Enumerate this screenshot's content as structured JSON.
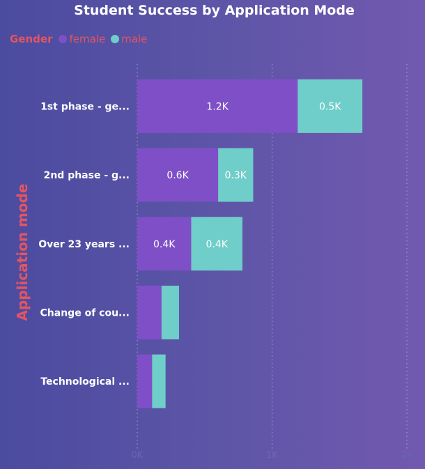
{
  "chart_data": {
    "type": "bar",
    "orientation": "horizontal",
    "stacked": true,
    "title": "Student Success by Application Mode",
    "ylabel": "Application mode",
    "xlabel": "",
    "legend_title": "Gender",
    "legend_position": "top-left",
    "grid": "vertical dotted",
    "xlim": [
      0,
      2000
    ],
    "x_ticks": [
      "0K",
      "1K",
      "2K"
    ],
    "x_tick_values": [
      0,
      1000,
      2000
    ],
    "categories": [
      "1st phase - ge...",
      "2nd phase - g...",
      "Over 23 years ...",
      "Change of cou...",
      "Technological ..."
    ],
    "series": [
      {
        "name": "female",
        "color": "#7f4fc7",
        "values": [
          1190,
          600,
          400,
          180,
          110
        ],
        "labels": [
          "1.2K",
          "0.6K",
          "0.4K",
          "",
          ""
        ]
      },
      {
        "name": "male",
        "color": "#6fcec9",
        "values": [
          480,
          260,
          380,
          130,
          100
        ],
        "labels": [
          "0.5K",
          "0.3K",
          "0.4K",
          "",
          ""
        ]
      }
    ]
  }
}
